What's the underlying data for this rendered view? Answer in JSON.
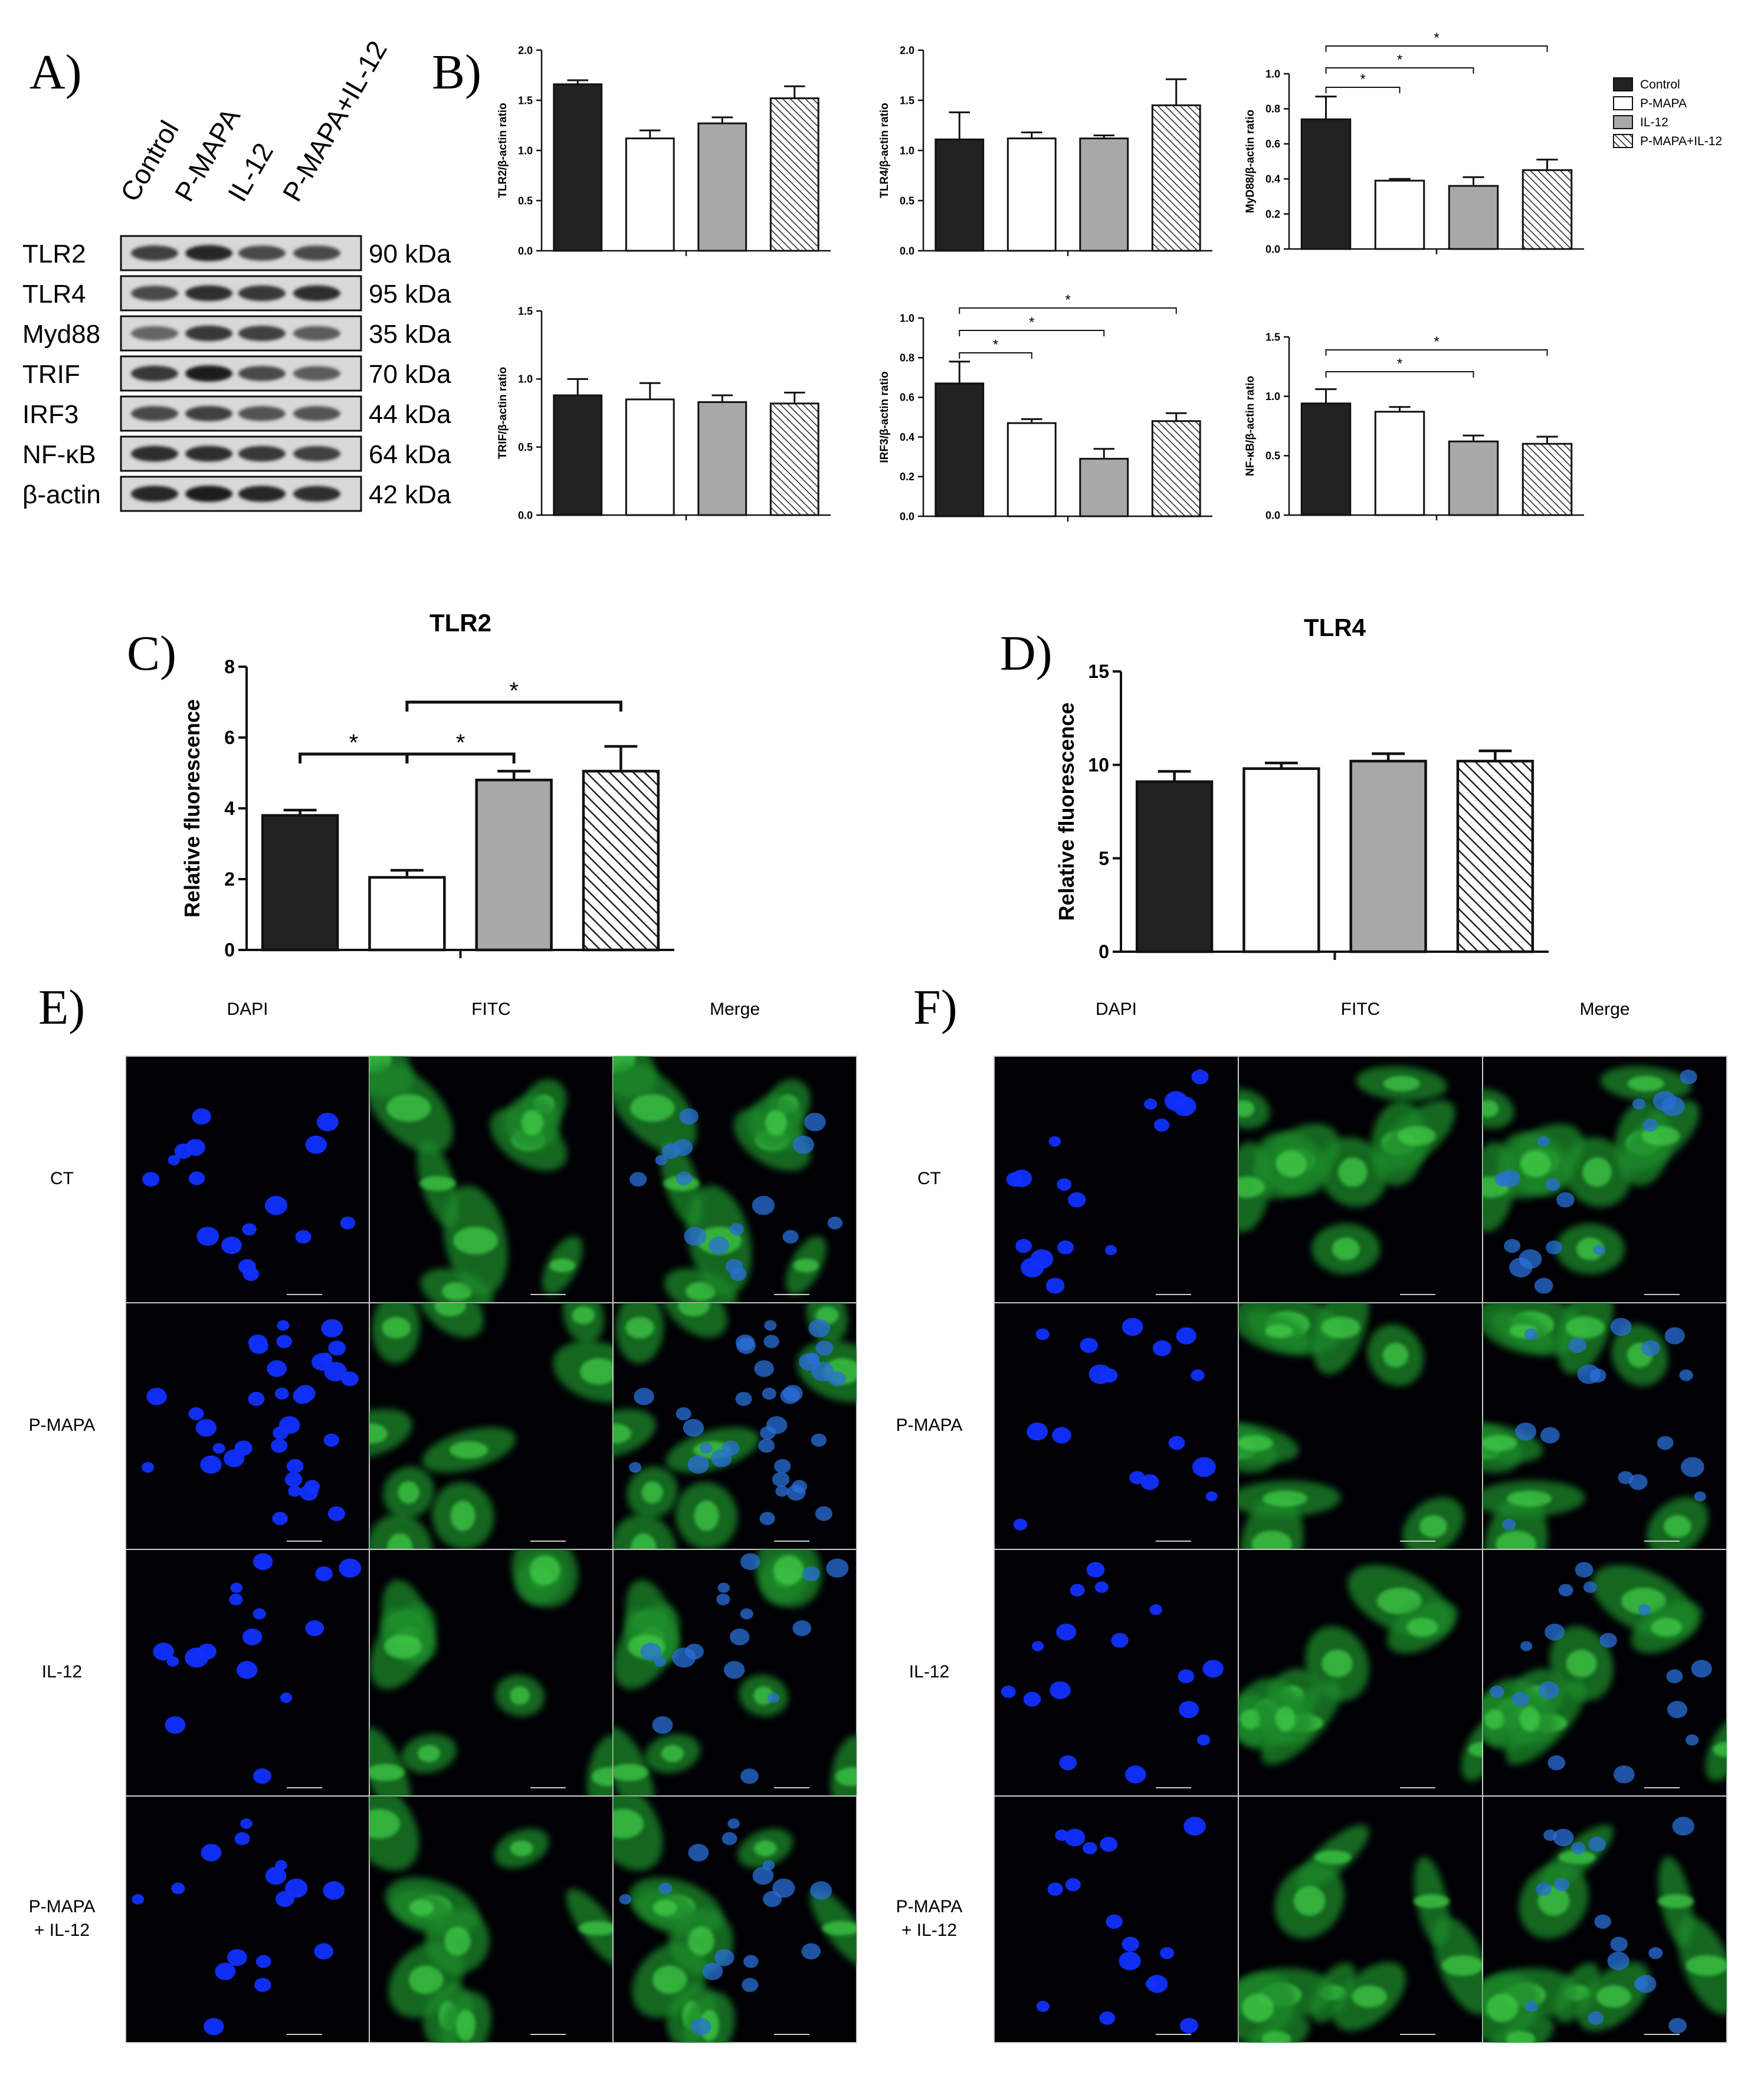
{
  "panels": {
    "A": "A)",
    "B": "B)",
    "C": "C)",
    "D": "D)",
    "E": "E)",
    "F": "F)"
  },
  "blot": {
    "lanes": [
      "Control",
      "P-MAPA",
      "IL-12",
      "P-MAPA+IL-12"
    ],
    "rows": [
      {
        "protein": "TLR2",
        "size": "90 kDa",
        "intensity": [
          0.75,
          0.9,
          0.7,
          0.7
        ]
      },
      {
        "protein": "TLR4",
        "size": "95 kDa",
        "intensity": [
          0.7,
          0.85,
          0.8,
          0.85
        ]
      },
      {
        "protein": "Myd88",
        "size": "35 kDa",
        "intensity": [
          0.55,
          0.8,
          0.75,
          0.6
        ]
      },
      {
        "protein": "TRIF",
        "size": "70 kDa",
        "intensity": [
          0.8,
          0.95,
          0.7,
          0.6
        ]
      },
      {
        "protein": "IRF3",
        "size": "44 kDa",
        "intensity": [
          0.7,
          0.75,
          0.65,
          0.65
        ]
      },
      {
        "protein": "NF-κB",
        "size": "64 kDa",
        "intensity": [
          0.85,
          0.85,
          0.8,
          0.75
        ]
      },
      {
        "protein": "β-actin",
        "size": "42 kDa",
        "intensity": [
          0.9,
          0.95,
          0.9,
          0.85
        ]
      }
    ]
  },
  "legend": [
    "Control",
    "P-MAPA",
    "IL-12",
    "P-MAPA+IL-12"
  ],
  "colors": {
    "control": "#222222",
    "pmapa": "#ffffff",
    "il12": "#a8a8a8",
    "hatch": "#222222",
    "dapi": "#1030ff",
    "fitc": "#2fb83a"
  },
  "chart_data": [
    {
      "type": "bar",
      "panel": "B",
      "ylabel": "TLR2/β-actin ratio",
      "categories": [
        "Control",
        "P-MAPA",
        "IL-12",
        "P-MAPA+IL-12"
      ],
      "values": [
        1.66,
        1.12,
        1.27,
        1.52
      ],
      "errors": [
        0.04,
        0.08,
        0.06,
        0.12
      ],
      "ylim": [
        0,
        2.0
      ],
      "ticks": [
        "0.0",
        "0.5",
        "1.0",
        "1.5",
        "2.0"
      ],
      "sig": []
    },
    {
      "type": "bar",
      "panel": "B",
      "ylabel": "TLR4/β-actin ratio",
      "categories": [
        "Control",
        "P-MAPA",
        "IL-12",
        "P-MAPA+IL-12"
      ],
      "values": [
        1.11,
        1.12,
        1.12,
        1.45
      ],
      "errors": [
        0.27,
        0.06,
        0.03,
        0.26
      ],
      "ylim": [
        0,
        2.0
      ],
      "ticks": [
        "0.0",
        "0.5",
        "1.0",
        "1.5",
        "2.0"
      ],
      "sig": []
    },
    {
      "type": "bar",
      "panel": "B",
      "ylabel": "MyD88/β-actin ratio",
      "categories": [
        "Control",
        "P-MAPA",
        "IL-12",
        "P-MAPA+IL-12"
      ],
      "values": [
        0.74,
        0.39,
        0.36,
        0.45
      ],
      "errors": [
        0.13,
        0.01,
        0.05,
        0.06
      ],
      "ylim": [
        0,
        1.0
      ],
      "ticks": [
        "0.0",
        "0.2",
        "0.4",
        "0.6",
        "0.8",
        "1.0"
      ],
      "sig": [
        {
          "from": 0,
          "to": 1,
          "label": "*"
        },
        {
          "from": 0,
          "to": 2,
          "label": "*"
        },
        {
          "from": 0,
          "to": 3,
          "label": "*"
        }
      ]
    },
    {
      "type": "bar",
      "panel": "B",
      "ylabel": "TRIF/β-actin ratio",
      "categories": [
        "Control",
        "P-MAPA",
        "IL-12",
        "P-MAPA+IL-12"
      ],
      "values": [
        0.88,
        0.85,
        0.83,
        0.82
      ],
      "errors": [
        0.12,
        0.12,
        0.05,
        0.08
      ],
      "ylim": [
        0,
        1.5
      ],
      "ticks": [
        "0.0",
        "0.5",
        "1.0",
        "1.5"
      ],
      "sig": []
    },
    {
      "type": "bar",
      "panel": "B",
      "ylabel": "IRF3/β-actin ratio",
      "categories": [
        "Control",
        "P-MAPA",
        "IL-12",
        "P-MAPA+IL-12"
      ],
      "values": [
        0.67,
        0.47,
        0.29,
        0.48
      ],
      "errors": [
        0.11,
        0.02,
        0.05,
        0.04
      ],
      "ylim": [
        0,
        1.0
      ],
      "ticks": [
        "0.0",
        "0.2",
        "0.4",
        "0.6",
        "0.8",
        "1.0"
      ],
      "sig": [
        {
          "from": 0,
          "to": 1,
          "label": "*"
        },
        {
          "from": 0,
          "to": 2,
          "label": "*"
        },
        {
          "from": 0,
          "to": 3,
          "label": "*"
        }
      ]
    },
    {
      "type": "bar",
      "panel": "B",
      "ylabel": "NF-κB/β-actin ratio",
      "categories": [
        "Control",
        "P-MAPA",
        "IL-12",
        "P-MAPA+IL-12"
      ],
      "values": [
        0.94,
        0.87,
        0.62,
        0.6
      ],
      "errors": [
        0.12,
        0.04,
        0.05,
        0.06
      ],
      "ylim": [
        0,
        1.5
      ],
      "ticks": [
        "0.0",
        "0.5",
        "1.0",
        "1.5"
      ],
      "sig": [
        {
          "from": 0,
          "to": 2,
          "label": "*"
        },
        {
          "from": 0,
          "to": 3,
          "label": "*"
        }
      ]
    },
    {
      "type": "bar",
      "panel": "C",
      "title": "TLR2",
      "ylabel": "Relative fluorescence",
      "categories": [
        "Control",
        "P-MAPA",
        "IL-12",
        "P-MAPA+IL-12"
      ],
      "values": [
        3.8,
        2.05,
        4.8,
        5.05
      ],
      "errors": [
        0.15,
        0.2,
        0.25,
        0.7
      ],
      "ylim": [
        0,
        8
      ],
      "ticks": [
        "0",
        "2",
        "4",
        "6",
        "8"
      ],
      "sig": [
        {
          "from": 0,
          "to": 1,
          "label": "*"
        },
        {
          "from": 1,
          "to": 2,
          "label": "*"
        },
        {
          "from": 1,
          "to": 3,
          "label": "*"
        }
      ]
    },
    {
      "type": "bar",
      "panel": "D",
      "title": "TLR4",
      "ylabel": "Relative fluorescence",
      "categories": [
        "Control",
        "P-MAPA",
        "IL-12",
        "P-MAPA+IL-12"
      ],
      "values": [
        9.1,
        9.8,
        10.2,
        10.2
      ],
      "errors": [
        0.55,
        0.3,
        0.4,
        0.55
      ],
      "ylim": [
        0,
        15
      ],
      "ticks": [
        "0",
        "5",
        "10",
        "15"
      ],
      "sig": []
    }
  ],
  "micrographs": {
    "columns": [
      "DAPI",
      "FITC",
      "Merge"
    ],
    "E": {
      "rows": [
        [
          "CT"
        ],
        [
          "P-MAPA"
        ],
        [
          "IL-12"
        ],
        [
          "P-MAPA",
          "+ IL-12"
        ]
      ]
    },
    "F": {
      "rows": [
        [
          "CT"
        ],
        [
          "P-MAPA"
        ],
        [
          "IL-12"
        ],
        [
          "P-MAPA",
          "+ IL-12"
        ]
      ]
    }
  }
}
